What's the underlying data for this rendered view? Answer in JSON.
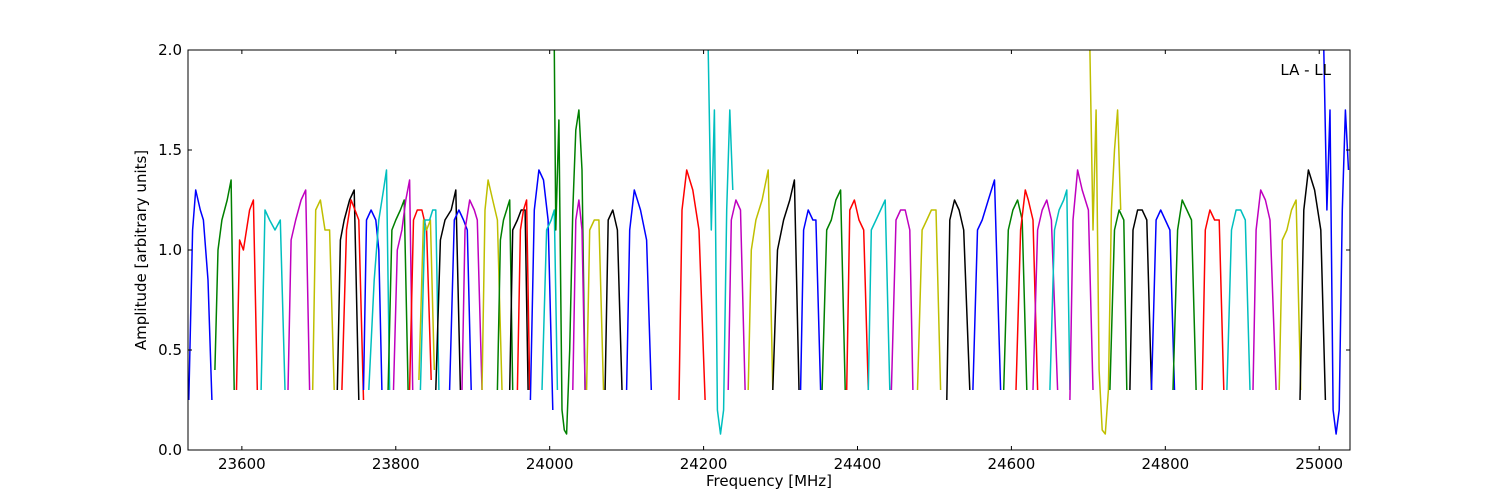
{
  "chart_data": {
    "type": "line",
    "title": "",
    "annotation": "LA - LL",
    "xlabel": "Frequency [MHz]",
    "ylabel": "Amplitude [arbitrary units]",
    "xlim": [
      23530,
      25040
    ],
    "ylim": [
      0.0,
      2.0
    ],
    "xticks": [
      23600,
      23800,
      24000,
      24200,
      24400,
      24600,
      24800,
      25000
    ],
    "xtick_labels": [
      "23600",
      "23800",
      "24000",
      "24200",
      "24400",
      "24600",
      "24800",
      "25000"
    ],
    "yticks": [
      0.0,
      0.5,
      1.0,
      1.5,
      2.0
    ],
    "ytick_labels": [
      "0.0",
      "0.5",
      "1.0",
      "1.5",
      "2.0"
    ],
    "grid": false,
    "legend": "none",
    "color_cycle": [
      "#0000ff",
      "#008000",
      "#ff0000",
      "#00bfbf",
      "#bf00bf",
      "#bfbf00",
      "#000000"
    ],
    "series": [
      {
        "color": "#0000ff",
        "x": [
          23531,
          23536,
          23540,
          23546,
          23550,
          23556,
          23561
        ],
        "y": [
          0.25,
          1.1,
          1.3,
          1.2,
          1.15,
          0.85,
          0.25
        ]
      },
      {
        "color": "#008000",
        "x": [
          23565,
          23569,
          23574,
          23581,
          23586,
          23590
        ],
        "y": [
          0.4,
          1.0,
          1.15,
          1.25,
          1.35,
          0.3
        ]
      },
      {
        "color": "#ff0000",
        "x": [
          23593,
          23597,
          23602,
          23610,
          23615,
          23620
        ],
        "y": [
          0.3,
          1.05,
          1.0,
          1.2,
          1.25,
          0.3
        ]
      },
      {
        "color": "#00bfbf",
        "x": [
          23625,
          23630,
          23636,
          23643,
          23650,
          23656
        ],
        "y": [
          0.3,
          1.2,
          1.15,
          1.1,
          1.15,
          0.3
        ]
      },
      {
        "color": "#bf00bf",
        "x": [
          23660,
          23664,
          23670,
          23677,
          23683,
          23688
        ],
        "y": [
          0.3,
          1.05,
          1.15,
          1.25,
          1.3,
          0.3
        ]
      },
      {
        "color": "#bfbf00",
        "x": [
          23692,
          23696,
          23702,
          23708,
          23714,
          23720
        ],
        "y": [
          0.3,
          1.2,
          1.25,
          1.1,
          1.1,
          0.3
        ]
      },
      {
        "color": "#000000",
        "x": [
          23724,
          23728,
          23733,
          23740,
          23746,
          23752
        ],
        "y": [
          0.3,
          1.05,
          1.15,
          1.25,
          1.3,
          0.25
        ]
      },
      {
        "color": "#ff0000",
        "x": [
          23730,
          23736,
          23742,
          23747,
          23752,
          23758
        ],
        "y": [
          0.3,
          1.1,
          1.25,
          1.2,
          1.15,
          0.25
        ]
      },
      {
        "color": "#0000ff",
        "x": [
          23758,
          23762,
          23768,
          23774,
          23778,
          23782
        ],
        "y": [
          0.3,
          1.15,
          1.2,
          1.15,
          1.0,
          0.3
        ]
      },
      {
        "color": "#00bfbf",
        "x": [
          23765,
          23772,
          23778,
          23784,
          23788,
          23792
        ],
        "y": [
          0.3,
          0.85,
          1.15,
          1.3,
          1.4,
          0.3
        ]
      },
      {
        "color": "#008000",
        "x": [
          23790,
          23795,
          23800,
          23806,
          23811,
          23816
        ],
        "y": [
          0.3,
          1.1,
          1.15,
          1.2,
          1.25,
          0.3
        ]
      },
      {
        "color": "#bf00bf",
        "x": [
          23797,
          23802,
          23808,
          23813,
          23818,
          23822
        ],
        "y": [
          0.3,
          1.0,
          1.1,
          1.25,
          1.35,
          0.3
        ]
      },
      {
        "color": "#ff0000",
        "x": [
          23818,
          23823,
          23828,
          23834,
          23840,
          23846
        ],
        "y": [
          0.3,
          1.15,
          1.2,
          1.2,
          1.1,
          0.35
        ]
      },
      {
        "color": "#bfbf00",
        "x": [
          23830,
          23836,
          23840,
          23845,
          23850
        ],
        "y": [
          0.35,
          1.15,
          1.1,
          1.15,
          0.4
        ]
      },
      {
        "color": "#00bfbf",
        "x": [
          23832,
          23838,
          23844,
          23848,
          23852,
          23856
        ],
        "y": [
          0.3,
          1.15,
          1.15,
          1.2,
          1.2,
          0.3
        ]
      },
      {
        "color": "#000000",
        "x": [
          23852,
          23858,
          23864,
          23872,
          23878,
          23884
        ],
        "y": [
          0.3,
          1.05,
          1.15,
          1.2,
          1.3,
          0.3
        ]
      },
      {
        "color": "#0000ff",
        "x": [
          23870,
          23876,
          23882,
          23888,
          23893,
          23898
        ],
        "y": [
          0.3,
          1.15,
          1.2,
          1.15,
          1.1,
          0.3
        ]
      },
      {
        "color": "#bf00bf",
        "x": [
          23886,
          23890,
          23896,
          23902,
          23906,
          23912
        ],
        "y": [
          0.3,
          1.1,
          1.25,
          1.2,
          1.15,
          0.3
        ]
      },
      {
        "color": "#bfbf00",
        "x": [
          23912,
          23916,
          23920,
          23926,
          23932,
          23938
        ],
        "y": [
          0.3,
          1.2,
          1.35,
          1.25,
          1.15,
          0.3
        ]
      },
      {
        "color": "#008000",
        "x": [
          23932,
          23936,
          23940,
          23944,
          23948,
          23952
        ],
        "y": [
          0.3,
          1.05,
          1.15,
          1.2,
          1.25,
          0.3
        ]
      },
      {
        "color": "#000000",
        "x": [
          23948,
          23952,
          23958,
          23963,
          23968,
          23972
        ],
        "y": [
          0.3,
          1.1,
          1.15,
          1.2,
          1.2,
          0.3
        ]
      },
      {
        "color": "#ff0000",
        "x": [
          23958,
          23962,
          23966,
          23970,
          23974
        ],
        "y": [
          0.3,
          1.1,
          1.2,
          1.25,
          0.3
        ]
      },
      {
        "color": "#0000ff",
        "x": [
          23975,
          23980,
          23986,
          23992,
          23998,
          24004
        ],
        "y": [
          0.25,
          1.2,
          1.4,
          1.35,
          1.15,
          0.2
        ]
      },
      {
        "color": "#00bfbf",
        "x": [
          23990,
          23996,
          24002,
          24006,
          24010
        ],
        "y": [
          0.3,
          1.1,
          1.15,
          1.2,
          0.3
        ]
      },
      {
        "color": "#008000",
        "x": [
          24006,
          24008,
          24012,
          24016,
          24019,
          24022,
          24026,
          24030,
          24034,
          24038,
          24042,
          24046
        ],
        "y": [
          2.0,
          1.1,
          1.65,
          0.2,
          0.1,
          0.08,
          0.5,
          1.2,
          1.6,
          1.7,
          1.4,
          0.3
        ]
      },
      {
        "color": "#bf00bf",
        "x": [
          24030,
          24034,
          24038,
          24042,
          24046
        ],
        "y": [
          0.3,
          1.15,
          1.25,
          1.1,
          0.3
        ]
      },
      {
        "color": "#bfbf00",
        "x": [
          24048,
          24052,
          24058,
          24064,
          24070
        ],
        "y": [
          0.3,
          1.1,
          1.15,
          1.15,
          0.3
        ]
      },
      {
        "color": "#000000",
        "x": [
          24072,
          24076,
          24082,
          24088,
          24094
        ],
        "y": [
          0.3,
          1.15,
          1.2,
          1.1,
          0.3
        ]
      },
      {
        "color": "#0000ff",
        "x": [
          24100,
          24104,
          24110,
          24118,
          24126,
          24132
        ],
        "y": [
          0.3,
          1.1,
          1.3,
          1.2,
          1.05,
          0.3
        ]
      },
      {
        "color": "#ff0000",
        "x": [
          24168,
          24172,
          24178,
          24186,
          24194,
          24202
        ],
        "y": [
          0.25,
          1.2,
          1.4,
          1.3,
          1.1,
          0.25
        ]
      },
      {
        "color": "#00bfbf",
        "x": [
          24206,
          24210,
          24214,
          24218,
          24222,
          24226,
          24230,
          24234,
          24238
        ],
        "y": [
          2.0,
          1.1,
          1.7,
          0.2,
          0.08,
          0.2,
          1.2,
          1.7,
          1.3
        ]
      },
      {
        "color": "#bf00bf",
        "x": [
          24232,
          24236,
          24242,
          24248,
          24254
        ],
        "y": [
          0.3,
          1.15,
          1.25,
          1.2,
          0.3
        ]
      },
      {
        "color": "#bfbf00",
        "x": [
          24258,
          24262,
          24268,
          24276,
          24284,
          24290
        ],
        "y": [
          0.3,
          1.0,
          1.15,
          1.25,
          1.4,
          0.3
        ]
      },
      {
        "color": "#000000",
        "x": [
          24290,
          24296,
          24304,
          24312,
          24318,
          24324
        ],
        "y": [
          0.3,
          1.0,
          1.15,
          1.25,
          1.35,
          0.3
        ]
      },
      {
        "color": "#0000ff",
        "x": [
          24326,
          24330,
          24336,
          24342,
          24346,
          24352
        ],
        "y": [
          0.3,
          1.1,
          1.2,
          1.15,
          1.15,
          0.3
        ]
      },
      {
        "color": "#008000",
        "x": [
          24354,
          24360,
          24366,
          24372,
          24378,
          24384
        ],
        "y": [
          0.3,
          1.1,
          1.15,
          1.25,
          1.3,
          0.3
        ]
      },
      {
        "color": "#ff0000",
        "x": [
          24386,
          24390,
          24396,
          24402,
          24408,
          24414
        ],
        "y": [
          0.3,
          1.2,
          1.25,
          1.15,
          1.1,
          0.3
        ]
      },
      {
        "color": "#00bfbf",
        "x": [
          24414,
          24418,
          24424,
          24430,
          24436,
          24442
        ],
        "y": [
          0.3,
          1.1,
          1.15,
          1.2,
          1.25,
          0.3
        ]
      },
      {
        "color": "#bf00bf",
        "x": [
          24444,
          24450,
          24456,
          24462,
          24468,
          24472
        ],
        "y": [
          0.3,
          1.15,
          1.2,
          1.2,
          1.1,
          0.3
        ]
      },
      {
        "color": "#bfbf00",
        "x": [
          24478,
          24484,
          24490,
          24496,
          24502,
          24508
        ],
        "y": [
          0.3,
          1.1,
          1.15,
          1.2,
          1.2,
          0.3
        ]
      },
      {
        "color": "#000000",
        "x": [
          24516,
          24520,
          24526,
          24532,
          24538,
          24546
        ],
        "y": [
          0.25,
          1.15,
          1.25,
          1.2,
          1.1,
          0.3
        ]
      },
      {
        "color": "#0000ff",
        "x": [
          24550,
          24556,
          24562,
          24570,
          24578,
          24586
        ],
        "y": [
          0.3,
          1.1,
          1.15,
          1.25,
          1.35,
          0.3
        ]
      },
      {
        "color": "#008000",
        "x": [
          24590,
          24596,
          24602,
          24608,
          24614,
          24620
        ],
        "y": [
          0.3,
          1.1,
          1.2,
          1.25,
          1.15,
          0.3
        ]
      },
      {
        "color": "#ff0000",
        "x": [
          24606,
          24612,
          24618,
          24622,
          24628,
          24634
        ],
        "y": [
          0.3,
          1.1,
          1.3,
          1.25,
          1.15,
          0.3
        ]
      },
      {
        "color": "#bf00bf",
        "x": [
          24628,
          24634,
          24640,
          24646,
          24652,
          24660
        ],
        "y": [
          0.3,
          1.1,
          1.2,
          1.25,
          1.15,
          0.3
        ]
      },
      {
        "color": "#00bfbf",
        "x": [
          24650,
          24656,
          24662,
          24668,
          24672,
          24676
        ],
        "y": [
          0.3,
          1.1,
          1.2,
          1.25,
          1.3,
          0.3
        ]
      },
      {
        "color": "#bf00bf",
        "x": [
          24676,
          24680,
          24686,
          24692,
          24700,
          24706
        ],
        "y": [
          0.25,
          1.15,
          1.4,
          1.3,
          1.2,
          0.3
        ]
      },
      {
        "color": "#bfbf00",
        "x": [
          24702,
          24706,
          24710,
          24714,
          24718,
          24722,
          24726,
          24730,
          24734,
          24738,
          24742
        ],
        "y": [
          2.0,
          1.1,
          1.7,
          0.4,
          0.1,
          0.08,
          0.3,
          1.2,
          1.5,
          1.7,
          1.2
        ]
      },
      {
        "color": "#008000",
        "x": [
          24728,
          24734,
          24740,
          24746,
          24750
        ],
        "y": [
          0.3,
          1.1,
          1.2,
          1.15,
          0.3
        ]
      },
      {
        "color": "#000000",
        "x": [
          24754,
          24758,
          24764,
          24770,
          24776,
          24782
        ],
        "y": [
          0.3,
          1.1,
          1.2,
          1.2,
          1.15,
          0.3
        ]
      },
      {
        "color": "#0000ff",
        "x": [
          24782,
          24788,
          24794,
          24800,
          24806,
          24812
        ],
        "y": [
          0.3,
          1.15,
          1.2,
          1.15,
          1.1,
          0.3
        ]
      },
      {
        "color": "#008000",
        "x": [
          24810,
          24816,
          24822,
          24828,
          24834,
          24840
        ],
        "y": [
          0.3,
          1.1,
          1.25,
          1.2,
          1.15,
          0.3
        ]
      },
      {
        "color": "#ff0000",
        "x": [
          24848,
          24852,
          24858,
          24864,
          24870,
          24876
        ],
        "y": [
          0.3,
          1.1,
          1.2,
          1.15,
          1.15,
          0.3
        ]
      },
      {
        "color": "#00bfbf",
        "x": [
          24880,
          24886,
          24892,
          24898,
          24904,
          24910
        ],
        "y": [
          0.3,
          1.1,
          1.2,
          1.2,
          1.15,
          0.3
        ]
      },
      {
        "color": "#bf00bf",
        "x": [
          24914,
          24918,
          24924,
          24930,
          24936,
          24944
        ],
        "y": [
          0.3,
          1.1,
          1.3,
          1.25,
          1.15,
          0.3
        ]
      },
      {
        "color": "#bfbf00",
        "x": [
          24948,
          24952,
          24958,
          24964,
          24970,
          24976
        ],
        "y": [
          0.3,
          1.05,
          1.1,
          1.2,
          1.25,
          0.3
        ]
      },
      {
        "color": "#000000",
        "x": [
          24975,
          24980,
          24986,
          24994,
          25002,
          25008
        ],
        "y": [
          0.25,
          1.2,
          1.4,
          1.3,
          1.1,
          0.25
        ]
      },
      {
        "color": "#0000ff",
        "x": [
          25006,
          25010,
          25014,
          25018,
          25022,
          25026,
          25030,
          25034,
          25038
        ],
        "y": [
          2.0,
          1.2,
          1.7,
          0.2,
          0.08,
          0.2,
          1.2,
          1.7,
          1.4
        ]
      }
    ]
  }
}
